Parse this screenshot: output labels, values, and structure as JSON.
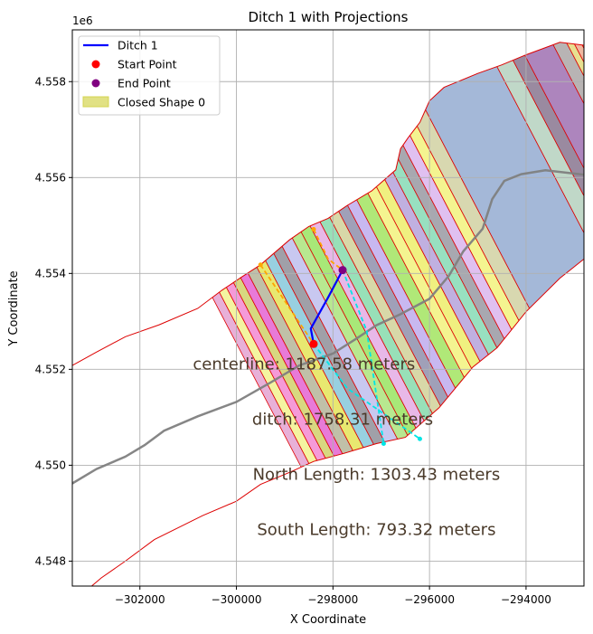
{
  "chart_data": {
    "type": "map-plot",
    "title": "Ditch 1 with Projections",
    "xlabel": "X Coordinate",
    "ylabel": "Y Coordinate",
    "y_offset_label": "1e6",
    "xlim": [
      -303400,
      -292800
    ],
    "ylim": [
      4547480,
      4559080
    ],
    "x_ticks": [
      {
        "value": -302000,
        "label": "−302000"
      },
      {
        "value": -300000,
        "label": "−300000"
      },
      {
        "value": -298000,
        "label": "−298000"
      },
      {
        "value": -296000,
        "label": "−296000"
      },
      {
        "value": -294000,
        "label": "−294000"
      }
    ],
    "y_ticks": [
      {
        "value": 4548000,
        "label": "4.548"
      },
      {
        "value": 4550000,
        "label": "4.550"
      },
      {
        "value": 4552000,
        "label": "4.552"
      },
      {
        "value": 4554000,
        "label": "4.554"
      },
      {
        "value": 4556000,
        "label": "4.556"
      },
      {
        "value": 4558000,
        "label": "4.558"
      }
    ],
    "grid": true,
    "legend_position": "upper-left",
    "legend": [
      {
        "label": "Ditch 1",
        "kind": "line",
        "color": "#0000ff"
      },
      {
        "label": "Start Point",
        "kind": "dot",
        "color": "#ff0000"
      },
      {
        "label": "End Point",
        "kind": "dot",
        "color": "#800080"
      },
      {
        "label": "Closed Shape 0",
        "kind": "patch",
        "color": "#d4d450"
      }
    ],
    "closed_shape": {
      "edge_color": "#dd0000",
      "outline": [
        [
          -303400,
          4552080
        ],
        [
          -302900,
          4552360
        ],
        [
          -302300,
          4552680
        ],
        [
          -301600,
          4552930
        ],
        [
          -300800,
          4553270
        ],
        [
          -300300,
          4553650
        ],
        [
          -299900,
          4553920
        ],
        [
          -299500,
          4554180
        ],
        [
          -298900,
          4554700
        ],
        [
          -298500,
          4554980
        ],
        [
          -298100,
          4555150
        ],
        [
          -297700,
          4555420
        ],
        [
          -297200,
          4555720
        ],
        [
          -296700,
          4556160
        ],
        [
          -296600,
          4556600
        ],
        [
          -296450,
          4556820
        ],
        [
          -296200,
          4557150
        ],
        [
          -296000,
          4557600
        ],
        [
          -295700,
          4557880
        ],
        [
          -295000,
          4558170
        ],
        [
          -294500,
          4558350
        ],
        [
          -294000,
          4558560
        ],
        [
          -293300,
          4558820
        ],
        [
          -292800,
          4558760
        ],
        [
          -292800,
          4554300
        ],
        [
          -293300,
          4553900
        ],
        [
          -294000,
          4553200
        ],
        [
          -294600,
          4552450
        ],
        [
          -295100,
          4552050
        ],
        [
          -295800,
          4551200
        ],
        [
          -296500,
          4550580
        ],
        [
          -297100,
          4550450
        ],
        [
          -297800,
          4550240
        ],
        [
          -298400,
          4550080
        ],
        [
          -298900,
          4549850
        ],
        [
          -299500,
          4549600
        ],
        [
          -300000,
          4549250
        ],
        [
          -300700,
          4548950
        ],
        [
          -301200,
          4548700
        ],
        [
          -301700,
          4548450
        ],
        [
          -302300,
          4548000
        ],
        [
          -302800,
          4547650
        ],
        [
          -303000,
          4547480
        ],
        [
          -303400,
          4547480
        ]
      ],
      "bands": [
        {
          "x1": -303400,
          "x2": -303200,
          "color": "#e8b0d8"
        },
        {
          "x1": -303200,
          "x2": -303000,
          "color": "#f4f4a0"
        },
        {
          "x1": -303000,
          "x2": -302800,
          "color": "#f59ad8"
        },
        {
          "x1": -302800,
          "x2": -302600,
          "color": "#d8d880"
        },
        {
          "x1": -302600,
          "x2": -302400,
          "color": "#e87ad8"
        },
        {
          "x1": -302400,
          "x2": -302150,
          "color": "#c0c0a8"
        },
        {
          "x1": -302150,
          "x2": -301900,
          "color": "#e8e870"
        },
        {
          "x1": -301900,
          "x2": -301650,
          "color": "#98d0e0"
        },
        {
          "x1": -301650,
          "x2": -301400,
          "color": "#a0a0a8"
        },
        {
          "x1": -301400,
          "x2": -301100,
          "color": "#c8c8f0"
        },
        {
          "x1": -301100,
          "x2": -300850,
          "color": "#b8e890"
        },
        {
          "x1": -300850,
          "x2": -300600,
          "color": "#a8e878"
        },
        {
          "x1": -300600,
          "x2": -300350,
          "color": "#e8b8e8"
        },
        {
          "x1": -300350,
          "x2": -300100,
          "color": "#98e0b8"
        },
        {
          "x1": -300100,
          "x2": -299850,
          "color": "#d8d8a8"
        },
        {
          "x1": -299850,
          "x2": -299600,
          "color": "#a0a0b8"
        },
        {
          "x1": -299600,
          "x2": -299350,
          "color": "#c8b8f0"
        },
        {
          "x1": -299350,
          "x2": -299050,
          "color": "#b0e878"
        },
        {
          "x1": -299050,
          "x2": -298800,
          "color": "#f4f490"
        },
        {
          "x1": -298800,
          "x2": -298550,
          "color": "#f0f080"
        },
        {
          "x1": -298550,
          "x2": -298300,
          "color": "#c0b0e0"
        },
        {
          "x1": -298300,
          "x2": -298050,
          "color": "#98e0c0"
        },
        {
          "x1": -298050,
          "x2": -297800,
          "color": "#a8a8b0"
        },
        {
          "x1": -297800,
          "x2": -297550,
          "color": "#e0c0f0"
        },
        {
          "x1": -297550,
          "x2": -297300,
          "color": "#f4f490"
        },
        {
          "x1": -297300,
          "x2": -296950,
          "color": "#d8d8b0"
        },
        {
          "x1": -296950,
          "x2": -295000,
          "color": "#a4b8d8"
        },
        {
          "x1": -295000,
          "x2": -294600,
          "color": "#c0d8c8"
        },
        {
          "x1": -294600,
          "x2": -294300,
          "color": "#9a8aa0"
        },
        {
          "x1": -294300,
          "x2": -293600,
          "color": "#ad85bd"
        },
        {
          "x1": -293600,
          "x2": -293300,
          "color": "#b8b4b4"
        },
        {
          "x1": -293300,
          "x2": -293150,
          "color": "#e8e090"
        },
        {
          "x1": -293150,
          "x2": -293000,
          "color": "#f0b8a0"
        },
        {
          "x1": -293000,
          "x2": -292800,
          "color": "#f4b070"
        }
      ]
    },
    "centerline": {
      "color": "#808080",
      "points": [
        [
          -303400,
          4549620
        ],
        [
          -302900,
          4549920
        ],
        [
          -302300,
          4550180
        ],
        [
          -301900,
          4550420
        ],
        [
          -301500,
          4550720
        ],
        [
          -300800,
          4551020
        ],
        [
          -300000,
          4551320
        ],
        [
          -299300,
          4551720
        ],
        [
          -298700,
          4552080
        ],
        [
          -298000,
          4552330
        ],
        [
          -297500,
          4552650
        ],
        [
          -297100,
          4552920
        ],
        [
          -296600,
          4553150
        ],
        [
          -296000,
          4553470
        ],
        [
          -295600,
          4553950
        ],
        [
          -295300,
          4554460
        ],
        [
          -294900,
          4554930
        ],
        [
          -294700,
          4555550
        ],
        [
          -294450,
          4555930
        ],
        [
          -294100,
          4556070
        ],
        [
          -293600,
          4556150
        ],
        [
          -292800,
          4556060
        ]
      ]
    },
    "ditch": {
      "name": "Ditch 1",
      "color": "#0000ff",
      "points": [
        [
          -298400,
          4552530
        ],
        [
          -298460,
          4552850
        ],
        [
          -298100,
          4553500
        ],
        [
          -297800,
          4554070
        ]
      ]
    },
    "start_point": {
      "x": -298400,
      "y": 4552530,
      "color": "#ff0000"
    },
    "end_point": {
      "x": -297800,
      "y": 4554070,
      "color": "#800080"
    },
    "projections": [
      {
        "color": "#ffa500",
        "dash": true,
        "points": [
          [
            -298400,
            4554920
          ],
          [
            -298100,
            4554300
          ],
          [
            -297800,
            4554070
          ]
        ]
      },
      {
        "color": "#ffa500",
        "dash": true,
        "points": [
          [
            -299500,
            4554180
          ],
          [
            -298400,
            4552530
          ]
        ]
      },
      {
        "color": "#00e5e5",
        "dash": true,
        "points": [
          [
            -297800,
            4554070
          ],
          [
            -297300,
            4552800
          ],
          [
            -296950,
            4550450
          ]
        ]
      },
      {
        "color": "#00e5e5",
        "dash": true,
        "points": [
          [
            -298400,
            4552530
          ],
          [
            -297700,
            4551600
          ],
          [
            -296200,
            4550550
          ]
        ]
      }
    ],
    "projection_points": [
      {
        "x": -298400,
        "y": 4554920,
        "color": "#ffa500"
      },
      {
        "x": -299500,
        "y": 4554180,
        "color": "#ffa500"
      },
      {
        "x": -296950,
        "y": 4550450,
        "color": "#00e5e5"
      },
      {
        "x": -296200,
        "y": 4550550,
        "color": "#00e5e5"
      }
    ],
    "annotations": [
      {
        "text": "centerline: 1187.58 meters",
        "x": -298600,
        "y": 4552000
      },
      {
        "text": "ditch: 1758.31 meters",
        "x": -297800,
        "y": 4550850
      },
      {
        "text": "North Length: 1303.43 meters",
        "x": -297100,
        "y": 4549700
      },
      {
        "text": "South Length: 793.32 meters",
        "x": -297100,
        "y": 4548550
      }
    ]
  }
}
